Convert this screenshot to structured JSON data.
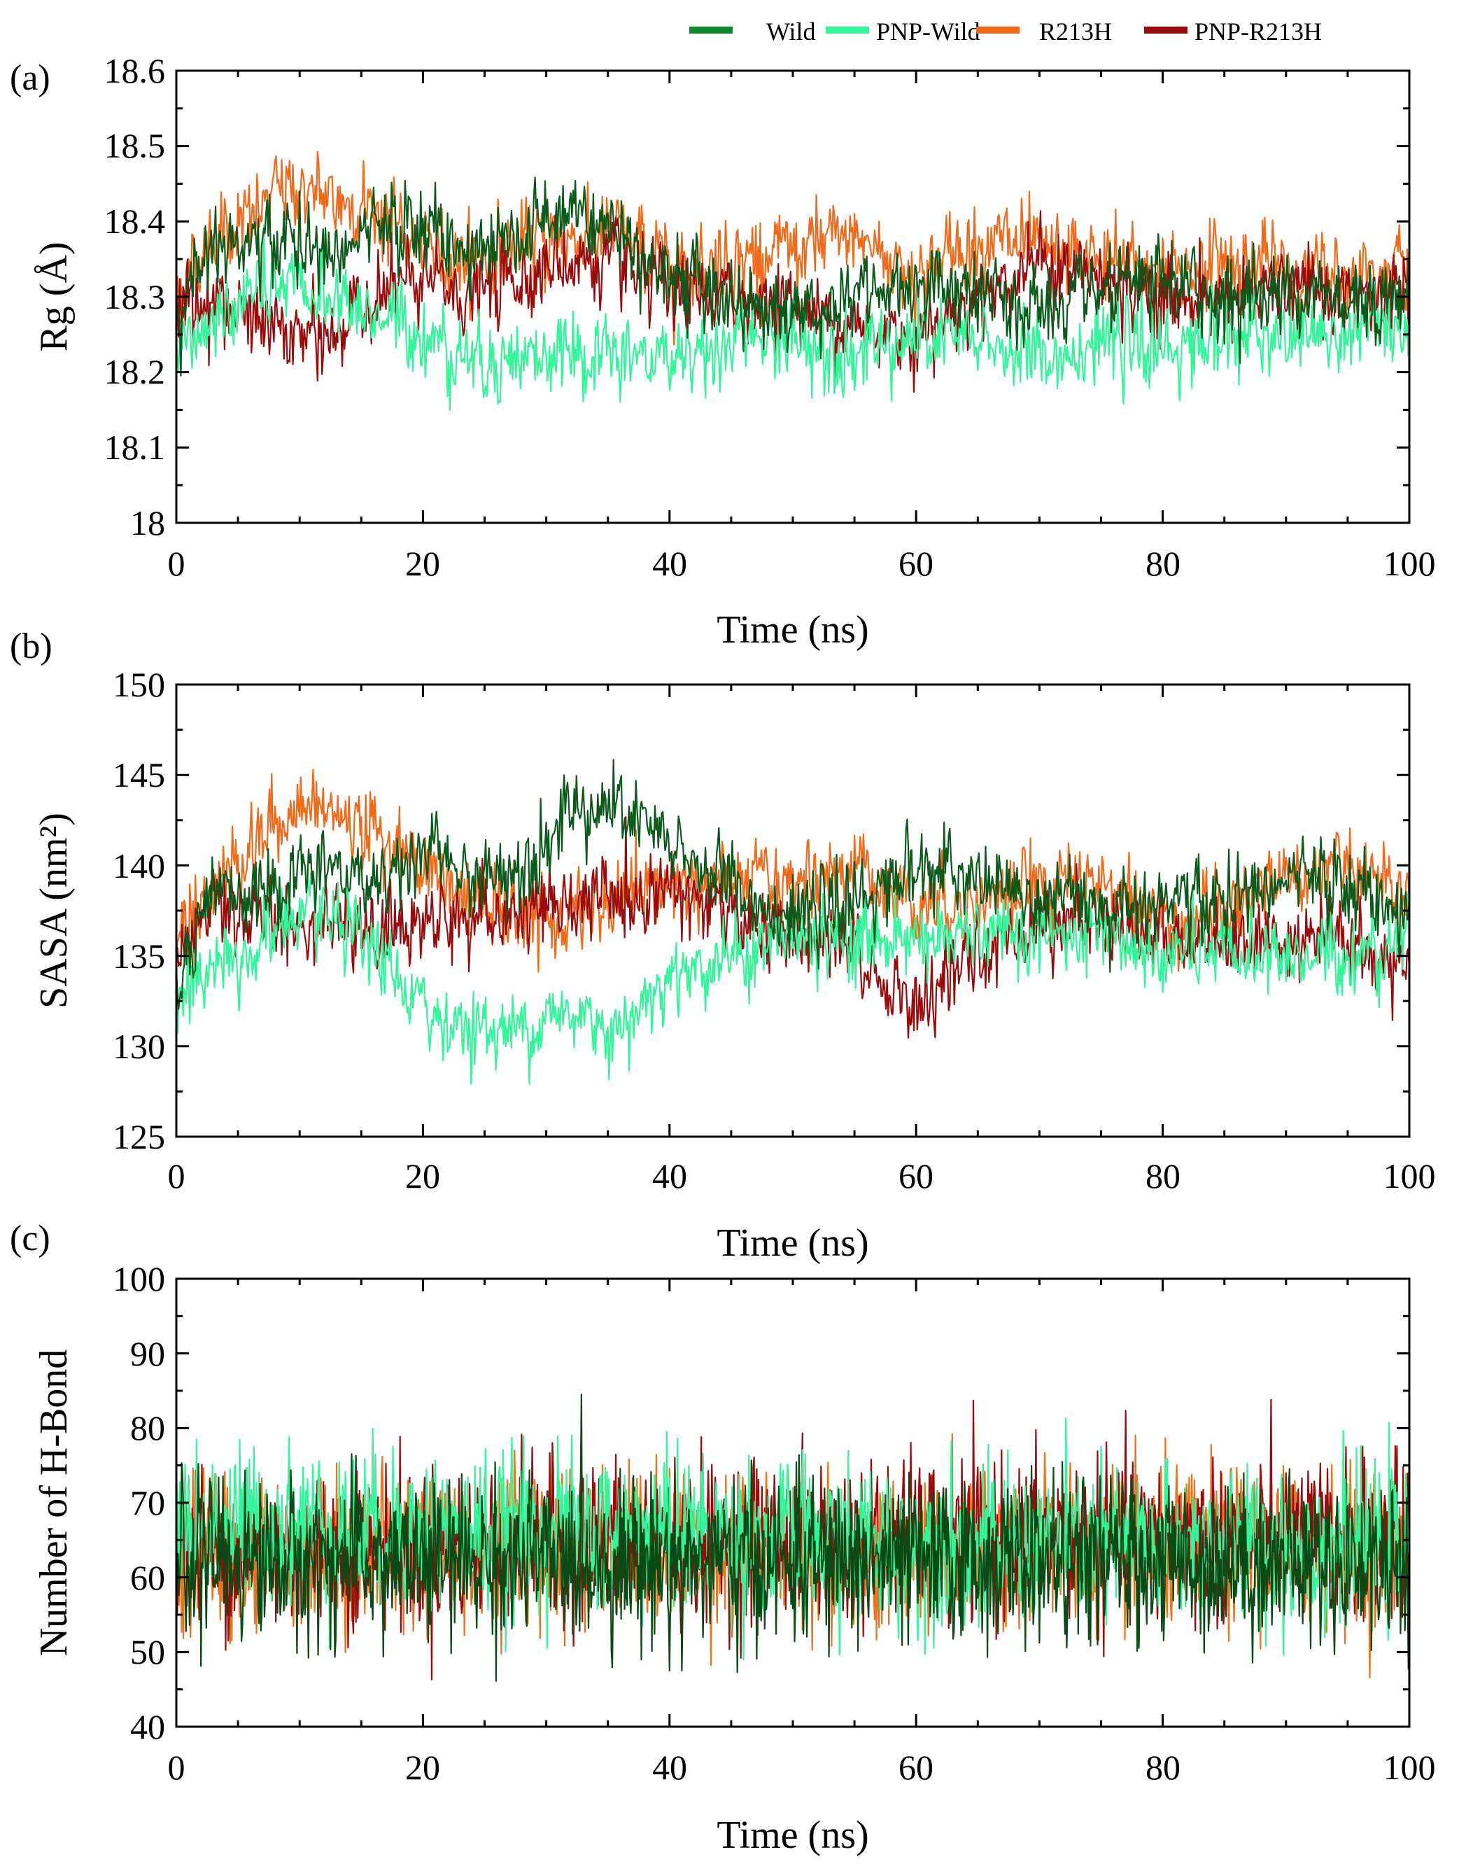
{
  "legend": [
    {
      "name": "Wild",
      "color": "#0a8a2a"
    },
    {
      "name": "PNP-Wild",
      "color": "#33f59a"
    },
    {
      "name": "R213H",
      "color": "#f06a1a"
    },
    {
      "name": "PNP-R213H",
      "color": "#9a0c0c"
    }
  ],
  "chart_data": [
    {
      "type": "line",
      "panel": "(a)",
      "title": "",
      "xlabel": "Time (ns)",
      "ylabel": "Rg (Å)",
      "xlim": [
        0,
        100
      ],
      "ylim": [
        18.0,
        18.6
      ],
      "xticks": [
        0,
        20,
        40,
        60,
        80,
        100
      ],
      "yticks": [
        18.0,
        18.1,
        18.2,
        18.3,
        18.4,
        18.5,
        18.6
      ],
      "xtick_labels": [
        "0",
        "20",
        "40",
        "60",
        "80",
        "100"
      ],
      "ytick_labels": [
        "18",
        "18.1",
        "18.2",
        "18.3",
        "18.4",
        "18.5",
        "18.6"
      ],
      "noise": 0.035,
      "series": [
        {
          "name": "R213H",
          "color": "#f06a1a",
          "x": [
            0,
            3,
            6,
            9,
            12,
            16,
            20,
            24,
            28,
            32,
            36,
            40,
            45,
            50,
            55,
            60,
            65,
            70,
            75,
            80,
            85,
            90,
            95,
            100
          ],
          "values": [
            18.3,
            18.38,
            18.4,
            18.45,
            18.43,
            18.42,
            18.36,
            18.35,
            18.37,
            18.38,
            18.38,
            18.34,
            18.35,
            18.36,
            18.38,
            18.33,
            18.38,
            18.36,
            18.35,
            18.33,
            18.35,
            18.34,
            18.33,
            18.35
          ]
        },
        {
          "name": "PNP-R213H",
          "color": "#9a0c0c",
          "x": [
            0,
            3,
            6,
            9,
            12,
            16,
            20,
            24,
            28,
            32,
            36,
            40,
            45,
            50,
            55,
            60,
            65,
            70,
            75,
            80,
            85,
            90,
            95,
            100
          ],
          "values": [
            18.28,
            18.3,
            18.27,
            18.25,
            18.24,
            18.3,
            18.32,
            18.3,
            18.33,
            18.35,
            18.34,
            18.3,
            18.3,
            18.29,
            18.26,
            18.25,
            18.3,
            18.35,
            18.32,
            18.3,
            18.3,
            18.31,
            18.3,
            18.3
          ]
        },
        {
          "name": "PNP-Wild",
          "color": "#33f59a",
          "x": [
            0,
            3,
            6,
            9,
            12,
            16,
            20,
            24,
            28,
            32,
            36,
            40,
            45,
            50,
            55,
            60,
            65,
            70,
            75,
            80,
            85,
            90,
            95,
            100
          ],
          "values": [
            18.22,
            18.27,
            18.3,
            18.31,
            18.3,
            18.28,
            18.25,
            18.22,
            18.22,
            18.22,
            18.22,
            18.22,
            18.24,
            18.24,
            18.23,
            18.24,
            18.24,
            18.22,
            18.24,
            18.23,
            18.25,
            18.24,
            18.25,
            18.26
          ]
        },
        {
          "name": "Wild",
          "color": "#0a5a1a",
          "x": [
            0,
            3,
            6,
            9,
            12,
            16,
            20,
            24,
            28,
            32,
            36,
            40,
            45,
            50,
            55,
            60,
            65,
            70,
            75,
            80,
            85,
            90,
            95,
            100
          ],
          "values": [
            18.28,
            18.38,
            18.36,
            18.38,
            18.35,
            18.38,
            18.4,
            18.35,
            18.38,
            18.43,
            18.38,
            18.33,
            18.3,
            18.28,
            18.3,
            18.32,
            18.3,
            18.28,
            18.3,
            18.32,
            18.3,
            18.31,
            18.3,
            18.3
          ]
        }
      ]
    },
    {
      "type": "line",
      "panel": "(b)",
      "title": "",
      "xlabel": "Time (ns)",
      "ylabel": "SASA (nm²)",
      "xlim": [
        0,
        100
      ],
      "ylim": [
        125,
        150
      ],
      "xticks": [
        0,
        20,
        40,
        60,
        80,
        100
      ],
      "yticks": [
        125,
        130,
        135,
        140,
        145,
        150
      ],
      "xtick_labels": [
        "0",
        "20",
        "40",
        "60",
        "80",
        "100"
      ],
      "ytick_labels": [
        "125",
        "130",
        "135",
        "140",
        "145",
        "150"
      ],
      "noise": 1.4,
      "series": [
        {
          "name": "R213H",
          "color": "#f06a1a",
          "x": [
            0,
            3,
            6,
            9,
            12,
            16,
            20,
            24,
            28,
            32,
            36,
            40,
            45,
            50,
            55,
            60,
            65,
            70,
            75,
            80,
            85,
            90,
            95,
            100
          ],
          "values": [
            136,
            139,
            141,
            143,
            143,
            142,
            140,
            138,
            137,
            137,
            138,
            139,
            139,
            139,
            140,
            138,
            138,
            139,
            139,
            137,
            137,
            140,
            140,
            138
          ]
        },
        {
          "name": "PNP-R213H",
          "color": "#9a0c0c",
          "x": [
            0,
            3,
            6,
            9,
            12,
            16,
            20,
            24,
            28,
            32,
            36,
            40,
            45,
            50,
            55,
            60,
            65,
            70,
            75,
            80,
            85,
            90,
            95,
            100
          ],
          "values": [
            134,
            138,
            137,
            137,
            137,
            136,
            137,
            137,
            137,
            138,
            138,
            139,
            137,
            136,
            135,
            132,
            135,
            137,
            137,
            136,
            136,
            136,
            136,
            134
          ]
        },
        {
          "name": "PNP-Wild",
          "color": "#33f59a",
          "x": [
            0,
            3,
            6,
            9,
            12,
            16,
            20,
            24,
            28,
            32,
            36,
            40,
            45,
            50,
            55,
            60,
            65,
            70,
            75,
            80,
            85,
            90,
            95,
            100
          ],
          "values": [
            133,
            134,
            135,
            137,
            137,
            135,
            132,
            131,
            131,
            132,
            131,
            134,
            135,
            136,
            136,
            136,
            136,
            136,
            136,
            135,
            135,
            135,
            135,
            136
          ]
        },
        {
          "name": "Wild",
          "color": "#0a5a1a",
          "x": [
            0,
            3,
            6,
            9,
            12,
            16,
            20,
            24,
            28,
            32,
            36,
            40,
            45,
            50,
            55,
            60,
            65,
            70,
            75,
            80,
            85,
            90,
            95,
            100
          ],
          "values": [
            134,
            139,
            138,
            139,
            140,
            139,
            141,
            139,
            140,
            143,
            143,
            141,
            139,
            137,
            138,
            140,
            139,
            138,
            138,
            138,
            138,
            139,
            139,
            137
          ]
        }
      ]
    },
    {
      "type": "line",
      "panel": "(c)",
      "title": "",
      "xlabel": "Time (ns)",
      "ylabel": "Number of H-Bond",
      "xlim": [
        0,
        100
      ],
      "ylim": [
        40,
        100
      ],
      "xticks": [
        0,
        20,
        40,
        60,
        80,
        100
      ],
      "yticks": [
        40,
        50,
        60,
        70,
        80,
        90,
        100
      ],
      "xtick_labels": [
        "0",
        "20",
        "40",
        "60",
        "80",
        "100"
      ],
      "ytick_labels": [
        "40",
        "50",
        "60",
        "70",
        "80",
        "90",
        "100"
      ],
      "noise": 7.0,
      "series": [
        {
          "name": "R213H",
          "color": "#e8741e",
          "x": [
            0,
            10,
            20,
            30,
            40,
            50,
            60,
            70,
            80,
            90,
            100
          ],
          "values": [
            63,
            63,
            64,
            64,
            64,
            63,
            63,
            64,
            64,
            64,
            64
          ]
        },
        {
          "name": "PNP-R213H",
          "color": "#9a0c0c",
          "x": [
            0,
            10,
            20,
            30,
            40,
            50,
            60,
            70,
            80,
            90,
            100
          ],
          "values": [
            64,
            64,
            64,
            65,
            65,
            65,
            65,
            65,
            65,
            65,
            65
          ]
        },
        {
          "name": "PNP-Wild",
          "color": "#33f59a",
          "x": [
            0,
            10,
            20,
            30,
            40,
            50,
            60,
            70,
            80,
            90,
            100
          ],
          "values": [
            67,
            67,
            66,
            66,
            66,
            65,
            64,
            64,
            64,
            64,
            64
          ]
        },
        {
          "name": "Wild",
          "color": "#0a4a14",
          "x": [
            0,
            10,
            20,
            30,
            40,
            50,
            60,
            70,
            80,
            90,
            100
          ],
          "values": [
            63,
            62,
            62,
            62,
            62,
            62,
            62,
            62,
            62,
            62,
            62
          ]
        }
      ]
    }
  ]
}
